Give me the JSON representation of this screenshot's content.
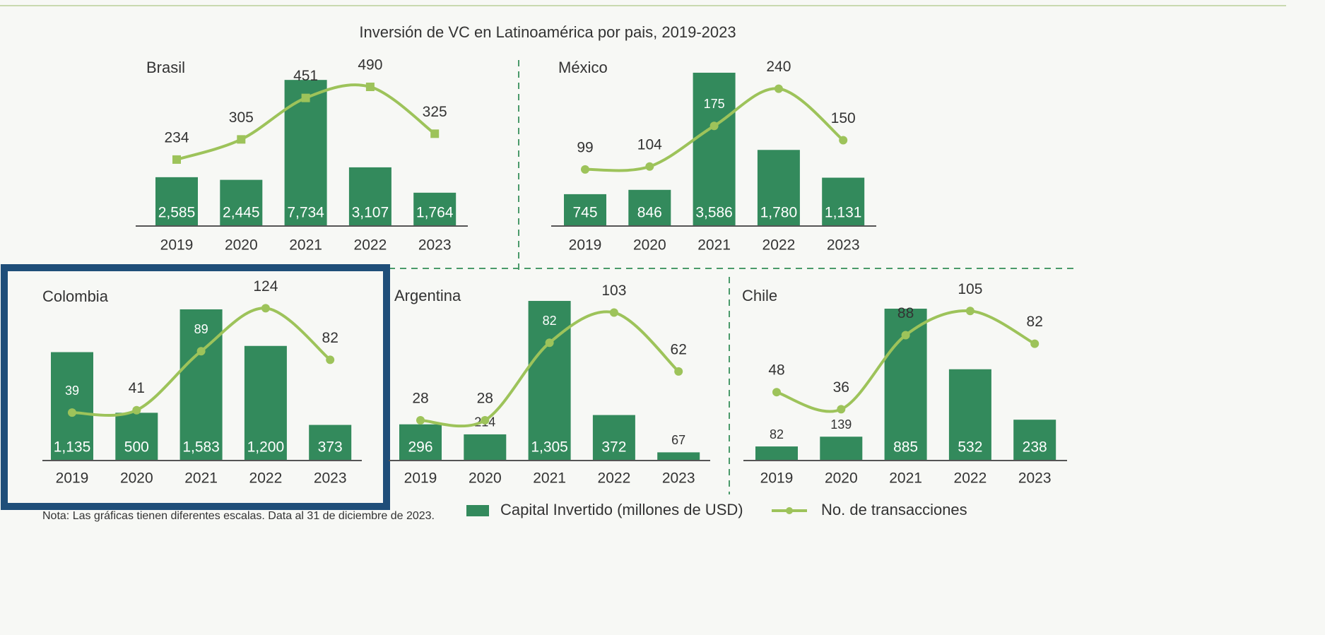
{
  "title": "Inversión de VC en Latinoamérica por pais, 2019-2023",
  "note": "Nota: Las gráficas tienen diferentes escalas. Data al 31 de diciembre de 2023.",
  "legend": [
    {
      "name": "Capital Invertido (millones de USD)",
      "color": "#338a5c"
    },
    {
      "name": "No. de transacciones",
      "color": "#9dc35a"
    }
  ],
  "chart_data": [
    {
      "type": "bar",
      "title": "Brasil",
      "categories": [
        "2019",
        "2020",
        "2021",
        "2022",
        "2023"
      ],
      "series": [
        {
          "values": [
            2585,
            2445,
            7734,
            3107,
            1764
          ],
          "value_labels": [
            "2,585",
            "2,445",
            "7,734",
            "3,107",
            "1,764"
          ],
          "color": "#338a5c"
        },
        {
          "values": [
            234,
            305,
            451,
            490,
            325
          ],
          "color": "#9dc35a",
          "axis": "y2",
          "marker": "square"
        }
      ],
      "ylim": [
        0,
        8600
      ],
      "y2lim": [
        0,
        572
      ]
    },
    {
      "type": "bar",
      "title": "México",
      "categories": [
        "2019",
        "2020",
        "2021",
        "2022",
        "2023"
      ],
      "series": [
        {
          "values": [
            745,
            846,
            3586,
            1780,
            1131
          ],
          "value_labels": [
            "745",
            "846",
            "3,586",
            "1,780",
            "1,131"
          ],
          "color": "#338a5c"
        },
        {
          "values": [
            99,
            104,
            175,
            240,
            150
          ],
          "color": "#9dc35a",
          "axis": "y2",
          "marker": "circle"
        }
      ],
      "ylim": [
        0,
        3800
      ],
      "y2lim": [
        0,
        284
      ]
    },
    {
      "type": "bar",
      "title": "Colombia",
      "categories": [
        "2019",
        "2020",
        "2021",
        "2022",
        "2023"
      ],
      "series": [
        {
          "values": [
            1135,
            500,
            1583,
            1200,
            373
          ],
          "value_labels": [
            "1,135",
            "500",
            "1,583",
            "1,200",
            "373"
          ],
          "color": "#338a5c"
        },
        {
          "values": [
            39,
            41,
            89,
            124,
            82
          ],
          "color": "#9dc35a",
          "axis": "y2",
          "marker": "circle"
        }
      ],
      "ylim": [
        0,
        1775
      ],
      "y2lim": [
        0,
        138
      ]
    },
    {
      "type": "bar",
      "title": "Argentina",
      "categories": [
        "2019",
        "2020",
        "2021",
        "2022",
        "2023"
      ],
      "series": [
        {
          "values": [
            296,
            214,
            1305,
            372,
            67
          ],
          "value_labels": [
            "296",
            "214",
            "1,305",
            "372",
            "67"
          ],
          "color": "#338a5c"
        },
        {
          "values": [
            28,
            28,
            82,
            103,
            62
          ],
          "color": "#9dc35a",
          "axis": "y2",
          "marker": "circle"
        }
      ],
      "ylim": [
        0,
        1386
      ],
      "y2lim": [
        0,
        118
      ]
    },
    {
      "type": "bar",
      "title": "Chile",
      "categories": [
        "2019",
        "2020",
        "2021",
        "2022",
        "2023"
      ],
      "series": [
        {
          "values": [
            82,
            139,
            885,
            532,
            238
          ],
          "value_labels": [
            "82",
            "139",
            "885",
            "532",
            "238"
          ],
          "color": "#338a5c"
        },
        {
          "values": [
            48,
            36,
            88,
            105,
            82
          ],
          "color": "#9dc35a",
          "axis": "y2",
          "marker": "circle"
        }
      ],
      "ylim": [
        0,
        988
      ],
      "y2lim": [
        0,
        119
      ]
    }
  ]
}
